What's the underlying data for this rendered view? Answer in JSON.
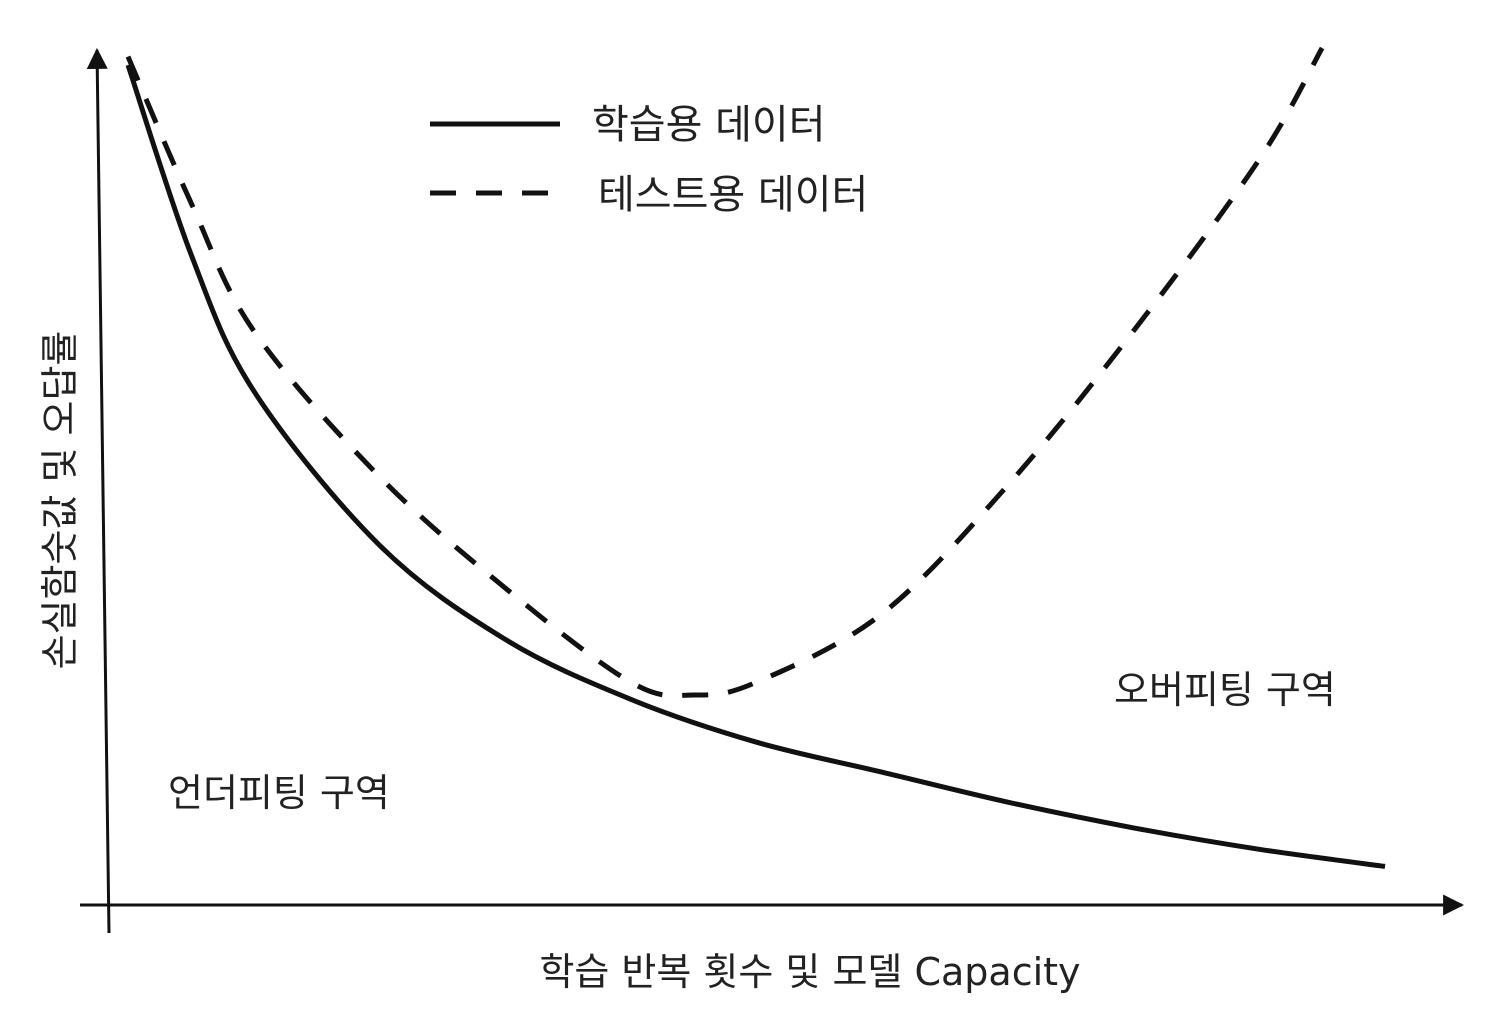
{
  "chart_data": {
    "type": "line",
    "title": "",
    "xlabel": "학습 반복 횟수 및 모델 Capacity",
    "ylabel": "손실함숫값 및 오답률",
    "grid": false,
    "legend_position": "top-center",
    "axis_ticks": "none",
    "series": [
      {
        "name": "학습용 데이터",
        "style": "solid",
        "color": "#111111",
        "x": [
          0.0,
          0.05,
          0.1,
          0.2,
          0.3,
          0.4,
          0.5,
          0.6,
          0.7,
          0.8,
          0.9,
          1.0
        ],
        "y": [
          0.98,
          0.76,
          0.6,
          0.42,
          0.31,
          0.24,
          0.19,
          0.155,
          0.12,
          0.09,
          0.065,
          0.045
        ]
      },
      {
        "name": "테스트용 데이터",
        "style": "dashed",
        "color": "#111111",
        "x": [
          0.0,
          0.05,
          0.1,
          0.2,
          0.3,
          0.4,
          0.45,
          0.5,
          0.6,
          0.7,
          0.8,
          0.9,
          0.95
        ],
        "y": [
          0.99,
          0.82,
          0.67,
          0.5,
          0.37,
          0.26,
          0.245,
          0.26,
          0.34,
          0.49,
          0.67,
          0.87,
          1.0
        ]
      }
    ],
    "annotations": [
      {
        "text": "언더피팅 구역",
        "region": "left"
      },
      {
        "text": "오버피팅 구역",
        "region": "right"
      }
    ]
  }
}
